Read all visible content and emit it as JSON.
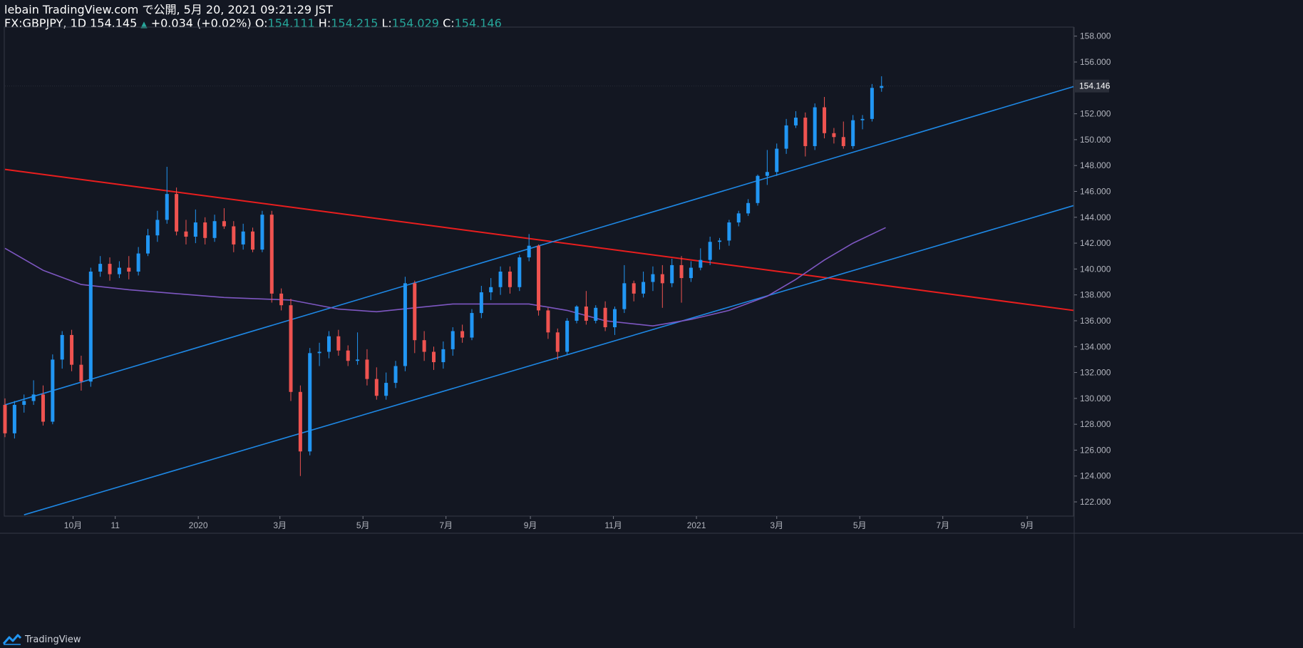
{
  "header": {
    "line1": "lebain TradingView.com で公開, 5月 20, 2021 09:21:29 JST",
    "symbol_line": "FX:GBPJPY, 1D 154.145",
    "change": "+0.034 (+0.02%)",
    "o_label": "O:",
    "o_value": "154.111",
    "h_label": "H:",
    "h_value": "154.215",
    "l_label": "L:",
    "l_value": "154.029",
    "c_label": "C:",
    "c_value": "154.146"
  },
  "footer": {
    "brand": "TradingView"
  },
  "colors": {
    "background": "#131722",
    "up": "#2196f3",
    "down": "#ef5350",
    "trendline_red": "#e91e1e",
    "channel_blue": "#1e88e5",
    "moving_average": "#7e57c2",
    "axis_text": "#b2b5be"
  },
  "chart_data": {
    "type": "candlestick",
    "symbol": "FX:GBPJPY",
    "interval": "1D",
    "last_price": "154.146",
    "y_axis": {
      "ticks": [
        "158.000",
        "156.000",
        "152.000",
        "150.000",
        "148.000",
        "146.000",
        "144.000",
        "142.000",
        "140.000",
        "138.000",
        "136.000",
        "134.000",
        "132.000",
        "130.000",
        "128.000",
        "126.000",
        "124.000",
        "122.000"
      ],
      "min": 120.9,
      "max": 158.7
    },
    "x_axis": {
      "ticks": [
        "10月",
        "11",
        "2020",
        "3月",
        "5月",
        "7月",
        "9月",
        "11月",
        "2021",
        "3月",
        "5月",
        "7月",
        "9月"
      ],
      "start": "2019-08-12",
      "end": "2021-10-05"
    },
    "trendlines": [
      {
        "name": "red",
        "color": "#e91e1e",
        "from": [
          "2019-08-12",
          147.7
        ],
        "to": [
          "2021-10-05",
          136.8
        ]
      },
      {
        "name": "channel-upper",
        "color": "#1e88e5",
        "from": [
          "2019-08-12",
          129.5
        ],
        "to": [
          "2021-10-05",
          154.1
        ]
      },
      {
        "name": "channel-lower",
        "color": "#1e88e5",
        "from": [
          "2019-08-26",
          121.0
        ],
        "to": [
          "2021-10-05",
          144.9
        ]
      }
    ],
    "moving_average": [
      [
        "2019-08-12",
        141.6
      ],
      [
        "2019-09-09",
        139.9
      ],
      [
        "2019-10-07",
        138.8
      ],
      [
        "2019-11-11",
        138.4
      ],
      [
        "2019-12-16",
        138.1
      ],
      [
        "2020-01-20",
        137.8
      ],
      [
        "2020-03-09",
        137.6
      ],
      [
        "2020-04-13",
        136.9
      ],
      [
        "2020-05-11",
        136.7
      ],
      [
        "2020-06-08",
        137.0
      ],
      [
        "2020-07-06",
        137.3
      ],
      [
        "2020-08-03",
        137.3
      ],
      [
        "2020-08-31",
        137.3
      ],
      [
        "2020-09-28",
        136.8
      ],
      [
        "2020-10-26",
        136.0
      ],
      [
        "2020-11-30",
        135.6
      ],
      [
        "2020-12-28",
        136.1
      ],
      [
        "2021-01-25",
        136.8
      ],
      [
        "2021-02-22",
        137.9
      ],
      [
        "2021-03-15",
        139.2
      ],
      [
        "2021-04-05",
        140.7
      ],
      [
        "2021-04-26",
        142.0
      ],
      [
        "2021-05-20",
        143.2
      ]
    ],
    "ohlc": [
      [
        "2019-08-12",
        129.5,
        130.0,
        127.0,
        127.3
      ],
      [
        "2019-08-19",
        127.3,
        129.8,
        126.9,
        129.5
      ],
      [
        "2019-08-26",
        129.5,
        130.3,
        128.9,
        129.8
      ],
      [
        "2019-09-02",
        129.8,
        131.4,
        129.5,
        130.3
      ],
      [
        "2019-09-09",
        130.3,
        131.0,
        127.9,
        128.2
      ],
      [
        "2019-09-16",
        128.2,
        133.4,
        128.0,
        133.0
      ],
      [
        "2019-09-23",
        133.0,
        135.2,
        132.3,
        134.9
      ],
      [
        "2019-09-30",
        134.9,
        135.3,
        132.1,
        132.6
      ],
      [
        "2019-10-07",
        132.6,
        133.3,
        130.6,
        131.3
      ],
      [
        "2019-10-14",
        131.3,
        140.1,
        130.9,
        139.8
      ],
      [
        "2019-10-21",
        139.8,
        141.0,
        139.4,
        140.4
      ],
      [
        "2019-10-28",
        140.4,
        140.9,
        139.1,
        139.6
      ],
      [
        "2019-11-04",
        139.6,
        140.6,
        139.3,
        140.1
      ],
      [
        "2019-11-11",
        140.1,
        141.0,
        139.2,
        139.8
      ],
      [
        "2019-11-18",
        139.8,
        141.7,
        139.5,
        141.2
      ],
      [
        "2019-11-25",
        141.2,
        143.1,
        141.0,
        142.6
      ],
      [
        "2019-12-02",
        142.6,
        144.5,
        142.1,
        143.8
      ],
      [
        "2019-12-09",
        143.8,
        147.9,
        143.5,
        145.8
      ],
      [
        "2019-12-16",
        145.8,
        146.3,
        142.6,
        142.9
      ],
      [
        "2019-12-23",
        142.9,
        143.8,
        141.9,
        142.5
      ],
      [
        "2019-12-30",
        142.5,
        144.6,
        142.0,
        143.6
      ],
      [
        "2020-01-06",
        143.6,
        144.0,
        141.9,
        142.4
      ],
      [
        "2020-01-13",
        142.4,
        144.2,
        142.1,
        143.7
      ],
      [
        "2020-01-20",
        143.7,
        144.7,
        143.1,
        143.3
      ],
      [
        "2020-01-27",
        143.3,
        143.7,
        141.3,
        141.9
      ],
      [
        "2020-02-03",
        141.9,
        143.5,
        141.5,
        142.9
      ],
      [
        "2020-02-10",
        142.9,
        143.2,
        141.3,
        141.5
      ],
      [
        "2020-02-17",
        141.5,
        144.5,
        141.3,
        144.2
      ],
      [
        "2020-02-24",
        144.2,
        144.5,
        137.4,
        138.1
      ],
      [
        "2020-03-02",
        138.1,
        138.5,
        136.8,
        137.2
      ],
      [
        "2020-03-09",
        137.2,
        137.7,
        129.8,
        130.5
      ],
      [
        "2020-03-16",
        130.5,
        131.0,
        124.0,
        125.9
      ],
      [
        "2020-03-23",
        125.9,
        133.9,
        125.6,
        133.5
      ],
      [
        "2020-03-30",
        133.5,
        134.3,
        132.5,
        133.6
      ],
      [
        "2020-04-06",
        133.6,
        135.2,
        133.1,
        134.8
      ],
      [
        "2020-04-13",
        134.8,
        135.3,
        133.3,
        133.7
      ],
      [
        "2020-04-20",
        133.7,
        134.1,
        132.5,
        132.9
      ],
      [
        "2020-04-27",
        132.9,
        135.1,
        132.6,
        133.0
      ],
      [
        "2020-05-04",
        133.0,
        133.8,
        131.0,
        131.5
      ],
      [
        "2020-05-11",
        131.5,
        132.4,
        129.9,
        130.2
      ],
      [
        "2020-05-18",
        130.2,
        132.0,
        129.9,
        131.2
      ],
      [
        "2020-05-25",
        131.2,
        132.9,
        130.8,
        132.5
      ],
      [
        "2020-06-01",
        132.5,
        139.4,
        132.1,
        138.9
      ],
      [
        "2020-06-08",
        138.9,
        139.1,
        133.5,
        134.5
      ],
      [
        "2020-06-15",
        134.5,
        135.2,
        132.9,
        133.6
      ],
      [
        "2020-06-22",
        133.6,
        134.0,
        132.2,
        132.8
      ],
      [
        "2020-06-29",
        132.8,
        134.4,
        132.3,
        133.8
      ],
      [
        "2020-07-06",
        133.8,
        135.5,
        133.3,
        135.2
      ],
      [
        "2020-07-13",
        135.2,
        135.7,
        134.3,
        134.7
      ],
      [
        "2020-07-20",
        134.7,
        136.9,
        134.5,
        136.6
      ],
      [
        "2020-07-27",
        136.6,
        138.7,
        136.2,
        138.2
      ],
      [
        "2020-08-03",
        138.2,
        139.3,
        137.6,
        138.6
      ],
      [
        "2020-08-10",
        138.6,
        140.2,
        138.0,
        139.8
      ],
      [
        "2020-08-17",
        139.8,
        140.2,
        138.1,
        138.6
      ],
      [
        "2020-08-24",
        138.6,
        141.1,
        138.3,
        140.9
      ],
      [
        "2020-08-31",
        140.9,
        142.7,
        140.6,
        141.8
      ],
      [
        "2020-09-07",
        141.8,
        141.9,
        136.4,
        136.8
      ],
      [
        "2020-09-14",
        136.8,
        137.0,
        134.6,
        135.1
      ],
      [
        "2020-09-21",
        135.1,
        135.4,
        133.0,
        133.6
      ],
      [
        "2020-09-28",
        133.6,
        136.2,
        133.4,
        136.0
      ],
      [
        "2020-10-05",
        136.0,
        137.2,
        135.8,
        137.1
      ],
      [
        "2020-10-12",
        137.1,
        138.3,
        135.7,
        136.0
      ],
      [
        "2020-10-19",
        136.0,
        137.2,
        135.8,
        137.0
      ],
      [
        "2020-10-26",
        137.0,
        137.5,
        135.2,
        135.5
      ],
      [
        "2020-11-02",
        135.5,
        137.1,
        134.9,
        136.9
      ],
      [
        "2020-11-09",
        136.9,
        140.3,
        136.6,
        138.9
      ],
      [
        "2020-11-16",
        138.9,
        139.1,
        137.5,
        138.1
      ],
      [
        "2020-11-23",
        138.1,
        139.8,
        137.8,
        139.0
      ],
      [
        "2020-11-30",
        139.0,
        140.2,
        138.3,
        139.6
      ],
      [
        "2020-12-07",
        139.6,
        140.3,
        137.0,
        138.9
      ],
      [
        "2020-12-14",
        138.9,
        140.8,
        138.6,
        140.3
      ],
      [
        "2020-12-21",
        140.3,
        141.0,
        137.4,
        139.3
      ],
      [
        "2020-12-28",
        139.3,
        140.6,
        139.0,
        140.1
      ],
      [
        "2021-01-04",
        140.1,
        141.6,
        139.9,
        140.7
      ],
      [
        "2021-01-11",
        140.7,
        142.5,
        140.3,
        142.1
      ],
      [
        "2021-01-18",
        142.1,
        142.4,
        141.5,
        142.2
      ],
      [
        "2021-01-25",
        142.2,
        143.8,
        141.8,
        143.6
      ],
      [
        "2021-02-01",
        143.6,
        144.5,
        143.3,
        144.3
      ],
      [
        "2021-02-08",
        144.3,
        145.4,
        144.1,
        145.1
      ],
      [
        "2021-02-15",
        145.1,
        147.3,
        144.9,
        147.2
      ],
      [
        "2021-02-22",
        147.2,
        149.2,
        146.5,
        147.5
      ],
      [
        "2021-03-01",
        147.5,
        149.7,
        147.2,
        149.3
      ],
      [
        "2021-03-08",
        149.3,
        151.6,
        148.9,
        151.1
      ],
      [
        "2021-03-15",
        151.1,
        152.2,
        150.9,
        151.7
      ],
      [
        "2021-03-22",
        151.7,
        152.1,
        148.7,
        149.5
      ],
      [
        "2021-03-29",
        149.5,
        152.8,
        149.2,
        152.5
      ],
      [
        "2021-04-05",
        152.5,
        153.3,
        150.1,
        150.5
      ],
      [
        "2021-04-12",
        150.5,
        150.9,
        149.7,
        150.2
      ],
      [
        "2021-04-19",
        150.2,
        151.4,
        149.3,
        149.5
      ],
      [
        "2021-04-26",
        149.5,
        151.9,
        149.3,
        151.5
      ],
      [
        "2021-05-03",
        151.5,
        151.9,
        150.8,
        151.6
      ],
      [
        "2021-05-10",
        151.6,
        154.3,
        151.4,
        154.0
      ],
      [
        "2021-05-17",
        154.0,
        154.9,
        153.7,
        154.146
      ]
    ]
  }
}
